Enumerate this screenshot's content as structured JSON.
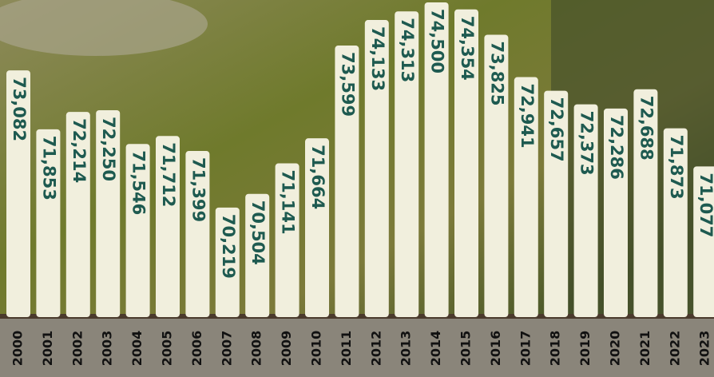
{
  "chart_data": {
    "type": "bar",
    "categories": [
      "2000",
      "2001",
      "2002",
      "2003",
      "2004",
      "2005",
      "2006",
      "2007",
      "2008",
      "2009",
      "2010",
      "2011",
      "2012",
      "2013",
      "2014",
      "2015",
      "2016",
      "2017",
      "2018",
      "2019",
      "2020",
      "2021",
      "2022",
      "2023"
    ],
    "values": [
      73082,
      71853,
      72214,
      72250,
      71546,
      71712,
      71399,
      70219,
      70504,
      71141,
      71664,
      73599,
      74133,
      74313,
      74500,
      74354,
      73825,
      72941,
      72657,
      72373,
      72286,
      72688,
      71873,
      71077
    ],
    "value_labels": [
      "73,082",
      "71,853",
      "72,214",
      "72,250",
      "71,546",
      "71,712",
      "71,399",
      "70,219",
      "70,504",
      "71,141",
      "71,664",
      "73,599",
      "74,133",
      "74,313",
      "74,500",
      "74,354",
      "73,825",
      "72,941",
      "72,657",
      "72,373",
      "72,286",
      "72,688",
      "71,873",
      "71,077"
    ],
    "color": "#f1efdd",
    "ylim": [
      68000,
      74550
    ]
  }
}
